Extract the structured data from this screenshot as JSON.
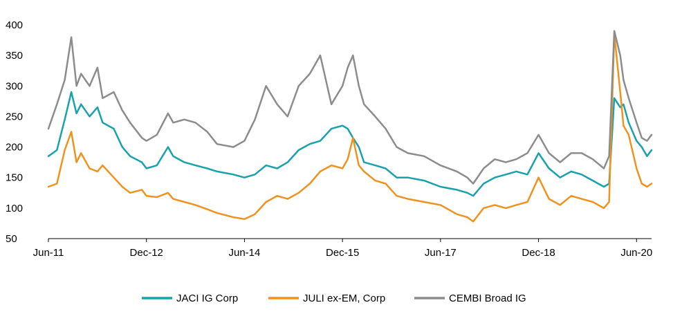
{
  "chart_data": {
    "type": "line",
    "title": "",
    "xlabel": "",
    "ylabel": "",
    "ylim": [
      50,
      400
    ],
    "yticks": [
      50,
      100,
      150,
      200,
      250,
      300,
      350,
      400
    ],
    "xlim": [
      2011.42,
      2020.65
    ],
    "xticks": [
      {
        "label": "Jun-11",
        "value": 2011.42
      },
      {
        "label": "Dec-12",
        "value": 2012.92
      },
      {
        "label": "Jun-14",
        "value": 2014.42
      },
      {
        "label": "Dec-15",
        "value": 2015.92
      },
      {
        "label": "Jun-17",
        "value": 2017.42
      },
      {
        "label": "Dec-18",
        "value": 2018.92
      },
      {
        "label": "Jun-20",
        "value": 2020.42
      }
    ],
    "grid": false,
    "legend_position": "bottom",
    "x": [
      2011.42,
      2011.55,
      2011.67,
      2011.77,
      2011.85,
      2011.92,
      2012.05,
      2012.17,
      2012.25,
      2012.42,
      2012.55,
      2012.67,
      2012.85,
      2012.92,
      2013.08,
      2013.25,
      2013.33,
      2013.5,
      2013.67,
      2013.85,
      2014.0,
      2014.25,
      2014.42,
      2014.58,
      2014.75,
      2014.92,
      2015.08,
      2015.25,
      2015.42,
      2015.58,
      2015.75,
      2015.92,
      2016.0,
      2016.08,
      2016.17,
      2016.25,
      2016.42,
      2016.58,
      2016.75,
      2016.92,
      2017.17,
      2017.42,
      2017.67,
      2017.83,
      2017.92,
      2018.08,
      2018.25,
      2018.42,
      2018.58,
      2018.75,
      2018.92,
      2019.08,
      2019.25,
      2019.42,
      2019.58,
      2019.75,
      2019.92,
      2020.0,
      2020.08,
      2020.17,
      2020.22,
      2020.3,
      2020.42,
      2020.5,
      2020.58,
      2020.65
    ],
    "series": [
      {
        "name": "JACI IG Corp",
        "color": "#17A2AC",
        "values": [
          185,
          195,
          245,
          290,
          255,
          270,
          250,
          265,
          240,
          230,
          200,
          185,
          175,
          165,
          170,
          200,
          185,
          175,
          170,
          165,
          160,
          155,
          150,
          155,
          170,
          165,
          175,
          195,
          205,
          210,
          230,
          235,
          230,
          215,
          200,
          175,
          170,
          165,
          150,
          150,
          145,
          135,
          130,
          125,
          120,
          140,
          150,
          155,
          160,
          155,
          190,
          165,
          150,
          160,
          155,
          145,
          135,
          140,
          280,
          265,
          270,
          240,
          210,
          200,
          185,
          195
        ]
      },
      {
        "name": "JULI ex-EM, Corp",
        "color": "#F0921E",
        "values": [
          135,
          140,
          195,
          225,
          175,
          190,
          165,
          160,
          170,
          150,
          135,
          125,
          130,
          120,
          118,
          125,
          115,
          110,
          105,
          98,
          92,
          85,
          82,
          90,
          110,
          120,
          115,
          125,
          140,
          160,
          170,
          165,
          180,
          215,
          170,
          160,
          145,
          140,
          120,
          115,
          110,
          105,
          90,
          85,
          78,
          100,
          105,
          100,
          105,
          110,
          150,
          115,
          105,
          120,
          115,
          110,
          100,
          110,
          385,
          290,
          235,
          220,
          165,
          140,
          135,
          140
        ]
      },
      {
        "name": "CEMBI Broad IG",
        "color": "#8C8C8C",
        "values": [
          230,
          270,
          310,
          380,
          300,
          320,
          300,
          330,
          280,
          290,
          260,
          240,
          215,
          210,
          220,
          255,
          240,
          245,
          240,
          225,
          205,
          200,
          210,
          245,
          300,
          270,
          250,
          300,
          320,
          350,
          270,
          300,
          330,
          350,
          300,
          270,
          250,
          230,
          200,
          190,
          185,
          170,
          160,
          150,
          140,
          165,
          180,
          175,
          180,
          190,
          220,
          190,
          175,
          190,
          190,
          180,
          165,
          185,
          390,
          350,
          310,
          280,
          240,
          215,
          210,
          220
        ]
      }
    ]
  },
  "legend": [
    {
      "label": "JACI IG Corp",
      "color": "#17A2AC"
    },
    {
      "label": "JULI ex-EM, Corp",
      "color": "#F0921E"
    },
    {
      "label": "CEMBI Broad IG",
      "color": "#8C8C8C"
    }
  ]
}
